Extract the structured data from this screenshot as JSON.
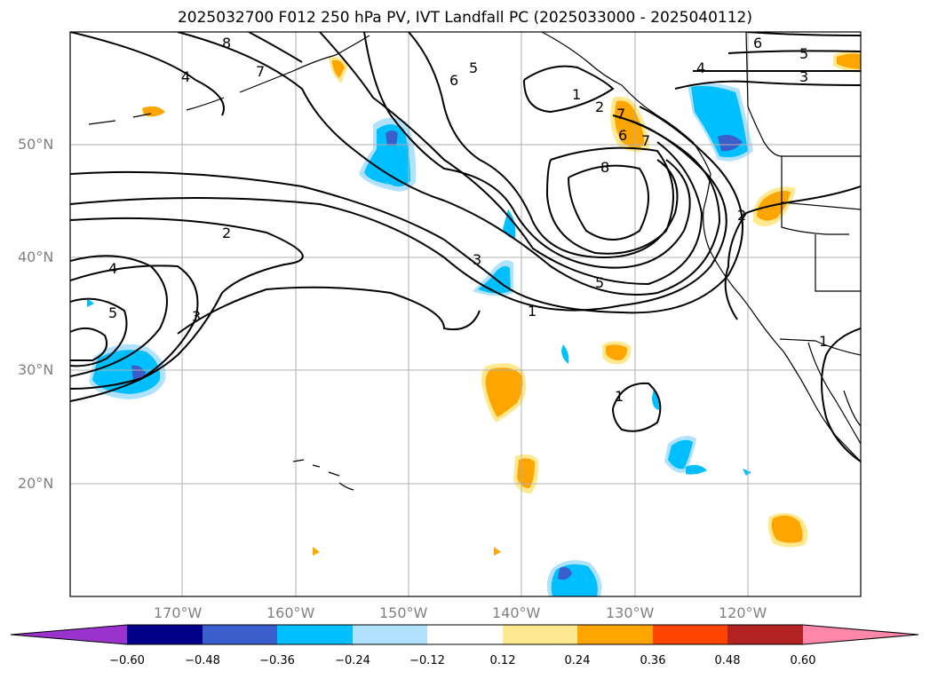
{
  "title": "2025032700 F012 250 hPa PV, IVT Landfall PC (2025033000 - 2025040112)",
  "lat_labels": [
    "50°N",
    "40°N",
    "30°N",
    "20°N"
  ],
  "lon_labels": [
    "170°W",
    "160°W",
    "150°W",
    "140°W",
    "130°W",
    "120°W"
  ],
  "colorbar": {
    "tick_labels": [
      "-0.60",
      "-0.48",
      "-0.36",
      "-0.24",
      "-0.12",
      "0.12",
      "0.24",
      "0.36",
      "0.48",
      "0.60"
    ],
    "colors": {
      "under": "#9933cc",
      "b1": "#00008b",
      "b2": "#3a5fcd",
      "b3": "#00bfff",
      "b4": "#b0e2ff",
      "b5": "#ffffff",
      "b6": "#ffe990",
      "b7": "#ffa500",
      "b8": "#ff4500",
      "b9": "#b22222",
      "over": "#ff88aa"
    }
  },
  "contour_labels": [
    "8",
    "7",
    "4",
    "6",
    "5",
    "4",
    "6",
    "5",
    "3",
    "1",
    "2",
    "7",
    "6",
    "7",
    "8",
    "2",
    "2",
    "4",
    "3",
    "5",
    "3",
    "5",
    "1",
    "1",
    "1"
  ]
}
